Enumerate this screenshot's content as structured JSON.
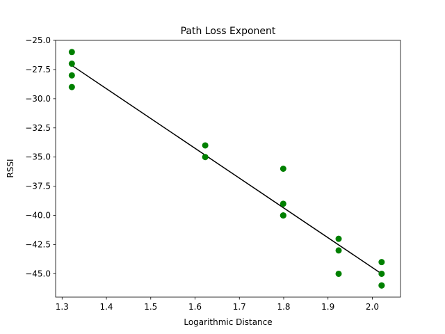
{
  "chart_data": {
    "type": "scatter",
    "title": "Path Loss Exponent",
    "xlabel": "Logarithmic Distance",
    "ylabel": "RSSI",
    "xlim": [
      1.2854,
      2.0636
    ],
    "ylim": [
      -47.0,
      -25.0
    ],
    "x_ticks": [
      1.3,
      1.4,
      1.5,
      1.6,
      1.7,
      1.8,
      1.9,
      2.0
    ],
    "x_tick_labels": [
      "1.3",
      "1.4",
      "1.5",
      "1.6",
      "1.7",
      "1.8",
      "1.9",
      "2.0"
    ],
    "y_ticks": [
      -25.0,
      -27.5,
      -30.0,
      -32.5,
      -35.0,
      -37.5,
      -40.0,
      -42.5,
      -45.0
    ],
    "y_tick_labels": [
      "−25.0",
      "−27.5",
      "−30.0",
      "−32.5",
      "−35.0",
      "−37.5",
      "−40.0",
      "−42.5",
      "−45.0"
    ],
    "grid": false,
    "colors": {
      "points": "#008000",
      "fit_line": "#000000"
    },
    "points": [
      {
        "x": 1.322,
        "y": -26
      },
      {
        "x": 1.322,
        "y": -27
      },
      {
        "x": 1.322,
        "y": -28
      },
      {
        "x": 1.322,
        "y": -29
      },
      {
        "x": 1.623,
        "y": -34
      },
      {
        "x": 1.623,
        "y": -35
      },
      {
        "x": 1.799,
        "y": -36
      },
      {
        "x": 1.799,
        "y": -39
      },
      {
        "x": 1.799,
        "y": -40
      },
      {
        "x": 1.799,
        "y": -40
      },
      {
        "x": 1.924,
        "y": -42
      },
      {
        "x": 1.924,
        "y": -43
      },
      {
        "x": 1.924,
        "y": -45
      },
      {
        "x": 2.021,
        "y": -44
      },
      {
        "x": 2.021,
        "y": -45
      },
      {
        "x": 2.021,
        "y": -46
      },
      {
        "x": 2.021,
        "y": -46
      }
    ],
    "fit_line": {
      "x": [
        1.322,
        2.021
      ],
      "y": [
        -27.15,
        -45.0
      ]
    }
  }
}
